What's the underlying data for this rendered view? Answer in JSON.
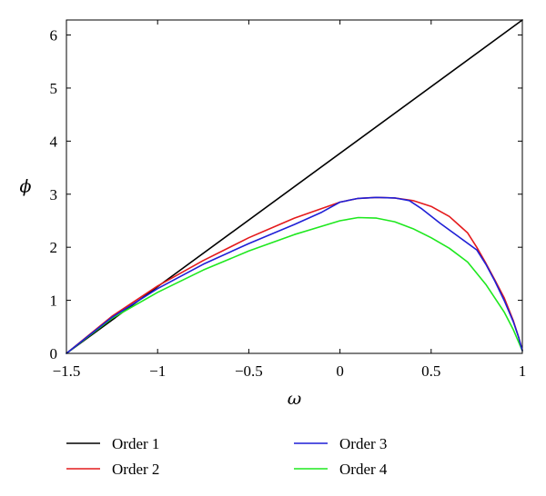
{
  "chart_data": {
    "type": "line",
    "title": "",
    "xlabel": "ω",
    "ylabel": "ϕ",
    "xlim": [
      -1.5,
      1
    ],
    "ylim": [
      0,
      6.283
    ],
    "xticks": [
      -1.5,
      -1,
      -0.5,
      0,
      0.5,
      1
    ],
    "xtick_labels": [
      "−1.5",
      "−1",
      "−0.5",
      "0",
      "0.5",
      "1"
    ],
    "yticks": [
      0,
      1,
      2,
      3,
      4,
      5,
      6
    ],
    "ytick_labels": [
      "0",
      "1",
      "2",
      "3",
      "4",
      "5",
      "6"
    ],
    "grid": false,
    "legend_position": "bottom",
    "series": [
      {
        "name": "Order 1",
        "color": "#000000",
        "x": [
          -1.5,
          1
        ],
        "y": [
          0,
          6.283
        ]
      },
      {
        "name": "Order 2",
        "color": "#e41a1c",
        "x": [
          -1.5,
          -1.25,
          -1.0,
          -0.75,
          -0.5,
          -0.25,
          0.0,
          0.1,
          0.2,
          0.3,
          0.4,
          0.5,
          0.6,
          0.7,
          0.75,
          0.8,
          0.85,
          0.9,
          0.95,
          0.98,
          1.0
        ],
        "y": [
          0,
          0.7,
          1.27,
          1.75,
          2.18,
          2.55,
          2.85,
          2.92,
          2.94,
          2.93,
          2.88,
          2.77,
          2.58,
          2.27,
          2.0,
          1.7,
          1.38,
          1.05,
          0.62,
          0.3,
          0.05
        ]
      },
      {
        "name": "Order 3",
        "color": "#1f1fd6",
        "x": [
          -1.5,
          -1.25,
          -1.0,
          -0.75,
          -0.5,
          -0.25,
          -0.1,
          0.0,
          0.1,
          0.2,
          0.3,
          0.38,
          0.45,
          0.55,
          0.65,
          0.75,
          0.8,
          0.85,
          0.9,
          0.95,
          0.98,
          1.0
        ],
        "y": [
          0,
          0.68,
          1.22,
          1.68,
          2.07,
          2.43,
          2.66,
          2.85,
          2.92,
          2.94,
          2.93,
          2.88,
          2.72,
          2.45,
          2.2,
          1.95,
          1.68,
          1.36,
          1.0,
          0.6,
          0.3,
          0.05
        ]
      },
      {
        "name": "Order 4",
        "color": "#1ee81e",
        "x": [
          -1.5,
          -1.25,
          -1.0,
          -0.75,
          -0.5,
          -0.25,
          0.0,
          0.1,
          0.2,
          0.3,
          0.4,
          0.5,
          0.6,
          0.7,
          0.8,
          0.9,
          0.95,
          1.0
        ],
        "y": [
          0,
          0.66,
          1.15,
          1.57,
          1.93,
          2.24,
          2.5,
          2.56,
          2.55,
          2.48,
          2.35,
          2.18,
          1.98,
          1.72,
          1.3,
          0.78,
          0.45,
          0.05
        ]
      }
    ]
  }
}
